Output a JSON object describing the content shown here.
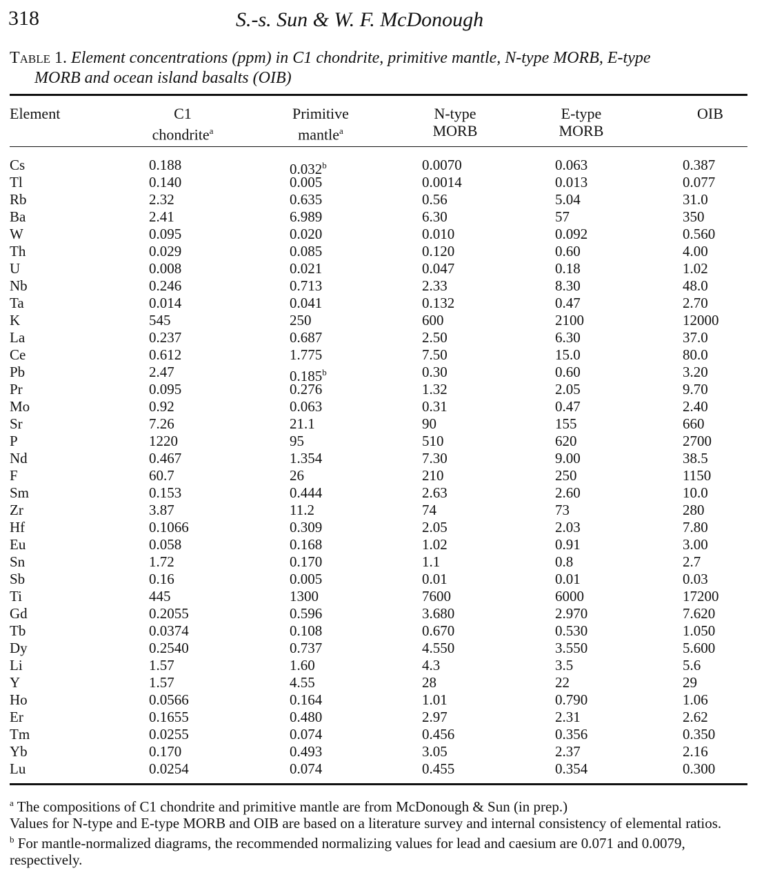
{
  "header": {
    "page_number": "318",
    "running_head": "S.-s. Sun & W. F. McDonough"
  },
  "caption": {
    "label": "Table 1.",
    "text_line1": "Element concentrations (ppm) in C1 chondrite, primitive mantle, N-type MORB, E-type",
    "text_line2": "MORB and ocean island basalts (OIB)"
  },
  "columns": [
    {
      "line1": "Element",
      "line2": "",
      "sup": ""
    },
    {
      "line1": "C1",
      "line2": "chondrite",
      "sup": "a"
    },
    {
      "line1": "Primitive",
      "line2": "mantle",
      "sup": "a"
    },
    {
      "line1": "N-type",
      "line2": "MORB",
      "sup": ""
    },
    {
      "line1": "E-type",
      "line2": "MORB",
      "sup": ""
    },
    {
      "line1": "OIB",
      "line2": "",
      "sup": ""
    }
  ],
  "rows": [
    {
      "el": "Cs",
      "v": [
        "0.188",
        "0.032",
        "0.0070",
        "0.063",
        "0.387"
      ],
      "sup": [
        "",
        "b",
        "",
        "",
        ""
      ]
    },
    {
      "el": "Tl",
      "v": [
        "0.140",
        "0.005",
        "0.0014",
        "0.013",
        "0.077"
      ],
      "sup": [
        "",
        "",
        "",
        "",
        ""
      ]
    },
    {
      "el": "Rb",
      "v": [
        "2.32",
        "0.635",
        "0.56",
        "5.04",
        "31.0"
      ],
      "sup": [
        "",
        "",
        "",
        "",
        ""
      ]
    },
    {
      "el": "Ba",
      "v": [
        "2.41",
        "6.989",
        "6.30",
        "57",
        "350"
      ],
      "sup": [
        "",
        "",
        "",
        "",
        ""
      ]
    },
    {
      "el": "W",
      "v": [
        "0.095",
        "0.020",
        "0.010",
        "0.092",
        "0.560"
      ],
      "sup": [
        "",
        "",
        "",
        "",
        ""
      ]
    },
    {
      "el": "Th",
      "v": [
        "0.029",
        "0.085",
        "0.120",
        "0.60",
        "4.00"
      ],
      "sup": [
        "",
        "",
        "",
        "",
        ""
      ]
    },
    {
      "el": "U",
      "v": [
        "0.008",
        "0.021",
        "0.047",
        "0.18",
        "1.02"
      ],
      "sup": [
        "",
        "",
        "",
        "",
        ""
      ]
    },
    {
      "el": "Nb",
      "v": [
        "0.246",
        "0.713",
        "2.33",
        "8.30",
        "48.0"
      ],
      "sup": [
        "",
        "",
        "",
        "",
        ""
      ]
    },
    {
      "el": "Ta",
      "v": [
        "0.014",
        "0.041",
        "0.132",
        "0.47",
        "2.70"
      ],
      "sup": [
        "",
        "",
        "",
        "",
        ""
      ]
    },
    {
      "el": "K",
      "v": [
        "545",
        "250",
        "600",
        "2100",
        "12000"
      ],
      "sup": [
        "",
        "",
        "",
        "",
        ""
      ]
    },
    {
      "el": "La",
      "v": [
        "0.237",
        "0.687",
        "2.50",
        "6.30",
        "37.0"
      ],
      "sup": [
        "",
        "",
        "",
        "",
        ""
      ]
    },
    {
      "el": "Ce",
      "v": [
        "0.612",
        "1.775",
        "7.50",
        "15.0",
        "80.0"
      ],
      "sup": [
        "",
        "",
        "",
        "",
        ""
      ]
    },
    {
      "el": "Pb",
      "v": [
        "2.47",
        "0.185",
        "0.30",
        "0.60",
        "3.20"
      ],
      "sup": [
        "",
        "b",
        "",
        "",
        ""
      ]
    },
    {
      "el": "Pr",
      "v": [
        "0.095",
        "0.276",
        "1.32",
        "2.05",
        "9.70"
      ],
      "sup": [
        "",
        "",
        "",
        "",
        ""
      ]
    },
    {
      "el": "Mo",
      "v": [
        "0.92",
        "0.063",
        "0.31",
        "0.47",
        "2.40"
      ],
      "sup": [
        "",
        "",
        "",
        "",
        ""
      ]
    },
    {
      "el": "Sr",
      "v": [
        "7.26",
        "21.1",
        "90",
        "155",
        "660"
      ],
      "sup": [
        "",
        "",
        "",
        "",
        ""
      ]
    },
    {
      "el": "P",
      "v": [
        "1220",
        "95",
        "510",
        "620",
        "2700"
      ],
      "sup": [
        "",
        "",
        "",
        "",
        ""
      ]
    },
    {
      "el": "Nd",
      "v": [
        "0.467",
        "1.354",
        "7.30",
        "9.00",
        "38.5"
      ],
      "sup": [
        "",
        "",
        "",
        "",
        ""
      ]
    },
    {
      "el": "F",
      "v": [
        "60.7",
        "26",
        "210",
        "250",
        "1150"
      ],
      "sup": [
        "",
        "",
        "",
        "",
        ""
      ]
    },
    {
      "el": "Sm",
      "v": [
        "0.153",
        "0.444",
        "2.63",
        "2.60",
        "10.0"
      ],
      "sup": [
        "",
        "",
        "",
        "",
        ""
      ]
    },
    {
      "el": "Zr",
      "v": [
        "3.87",
        "11.2",
        "74",
        "73",
        "280"
      ],
      "sup": [
        "",
        "",
        "",
        "",
        ""
      ]
    },
    {
      "el": "Hf",
      "v": [
        "0.1066",
        "0.309",
        "2.05",
        "2.03",
        "7.80"
      ],
      "sup": [
        "",
        "",
        "",
        "",
        ""
      ]
    },
    {
      "el": "Eu",
      "v": [
        "0.058",
        "0.168",
        "1.02",
        "0.91",
        "3.00"
      ],
      "sup": [
        "",
        "",
        "",
        "",
        ""
      ]
    },
    {
      "el": "Sn",
      "v": [
        "1.72",
        "0.170",
        "1.1",
        "0.8",
        "2.7"
      ],
      "sup": [
        "",
        "",
        "",
        "",
        ""
      ]
    },
    {
      "el": "Sb",
      "v": [
        "0.16",
        "0.005",
        "0.01",
        "0.01",
        "0.03"
      ],
      "sup": [
        "",
        "",
        "",
        "",
        ""
      ]
    },
    {
      "el": "Ti",
      "v": [
        "445",
        "1300",
        "7600",
        "6000",
        "17200"
      ],
      "sup": [
        "",
        "",
        "",
        "",
        ""
      ]
    },
    {
      "el": "Gd",
      "v": [
        "0.2055",
        "0.596",
        "3.680",
        "2.970",
        "7.620"
      ],
      "sup": [
        "",
        "",
        "",
        "",
        ""
      ]
    },
    {
      "el": "Tb",
      "v": [
        "0.0374",
        "0.108",
        "0.670",
        "0.530",
        "1.050"
      ],
      "sup": [
        "",
        "",
        "",
        "",
        ""
      ]
    },
    {
      "el": "Dy",
      "v": [
        "0.2540",
        "0.737",
        "4.550",
        "3.550",
        "5.600"
      ],
      "sup": [
        "",
        "",
        "",
        "",
        ""
      ]
    },
    {
      "el": "Li",
      "v": [
        "1.57",
        "1.60",
        "4.3",
        "3.5",
        "5.6"
      ],
      "sup": [
        "",
        "",
        "",
        "",
        ""
      ]
    },
    {
      "el": "Y",
      "v": [
        "1.57",
        "4.55",
        "28",
        "22",
        "29"
      ],
      "sup": [
        "",
        "",
        "",
        "",
        ""
      ]
    },
    {
      "el": "Ho",
      "v": [
        "0.0566",
        "0.164",
        "1.01",
        "0.790",
        "1.06"
      ],
      "sup": [
        "",
        "",
        "",
        "",
        ""
      ]
    },
    {
      "el": "Er",
      "v": [
        "0.1655",
        "0.480",
        "2.97",
        "2.31",
        "2.62"
      ],
      "sup": [
        "",
        "",
        "",
        "",
        ""
      ]
    },
    {
      "el": "Tm",
      "v": [
        "0.0255",
        "0.074",
        "0.456",
        "0.356",
        "0.350"
      ],
      "sup": [
        "",
        "",
        "",
        "",
        ""
      ]
    },
    {
      "el": "Yb",
      "v": [
        "0.170",
        "0.493",
        "3.05",
        "2.37",
        "2.16"
      ],
      "sup": [
        "",
        "",
        "",
        "",
        ""
      ]
    },
    {
      "el": "Lu",
      "v": [
        "0.0254",
        "0.074",
        "0.455",
        "0.354",
        "0.300"
      ],
      "sup": [
        "",
        "",
        "",
        "",
        ""
      ]
    }
  ],
  "footnotes": {
    "a_mark": "a",
    "a_text": "The compositions of C1 chondrite and primitive mantle are from McDonough & Sun (in prep.)",
    "general_text": "Values for N-type and E-type MORB and OIB are based on a literature survey and internal consistency of elemental ratios.",
    "b_mark": "b",
    "b_text": "For mantle-normalized diagrams, the recommended normalizing values for lead and caesium are 0.071 and 0.0079, respectively."
  }
}
